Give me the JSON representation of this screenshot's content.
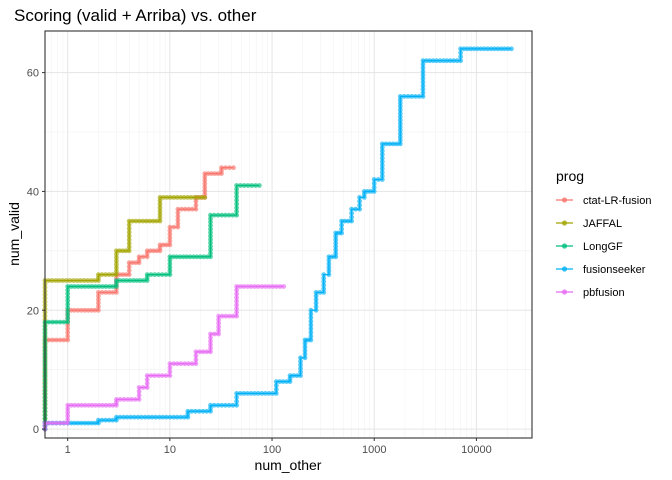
{
  "chart_data": {
    "type": "line",
    "title": "Scoring (valid + Arriba) vs. other",
    "xlabel": "num_other",
    "ylabel": "num_valid",
    "x_scale": "log10",
    "xlim": [
      0.6,
      35000
    ],
    "ylim": [
      -1.5,
      67
    ],
    "x_ticks": [
      1,
      10,
      100,
      1000,
      10000
    ],
    "x_tick_labels": [
      "1",
      "10",
      "100",
      "1000",
      "10000"
    ],
    "y_ticks": [
      0,
      20,
      40,
      60
    ],
    "y_tick_labels": [
      "0",
      "20",
      "40",
      "60"
    ],
    "grid": true,
    "legend": {
      "title": "prog",
      "position": "right"
    },
    "series": [
      {
        "name": "ctat-LR-fusion",
        "color": "#F8766D",
        "step_points": [
          [
            0.6,
            0
          ],
          [
            0.6,
            15
          ],
          [
            1,
            15
          ],
          [
            1,
            20
          ],
          [
            2,
            20
          ],
          [
            2,
            23
          ],
          [
            3,
            23
          ],
          [
            3,
            26
          ],
          [
            4,
            26
          ],
          [
            4,
            28
          ],
          [
            5,
            28
          ],
          [
            5,
            29
          ],
          [
            6,
            29
          ],
          [
            6,
            30
          ],
          [
            8,
            30
          ],
          [
            8,
            31
          ],
          [
            10,
            31
          ],
          [
            10,
            34
          ],
          [
            12,
            34
          ],
          [
            12,
            37
          ],
          [
            18,
            37
          ],
          [
            18,
            39
          ],
          [
            22,
            39
          ],
          [
            22,
            43
          ],
          [
            32,
            43
          ],
          [
            32,
            44
          ],
          [
            42,
            44
          ]
        ]
      },
      {
        "name": "JAFFAL",
        "color": "#A3A500",
        "step_points": [
          [
            0.6,
            0
          ],
          [
            0.6,
            25
          ],
          [
            2,
            25
          ],
          [
            2,
            26
          ],
          [
            3,
            26
          ],
          [
            3,
            30
          ],
          [
            4,
            30
          ],
          [
            4,
            35
          ],
          [
            8,
            35
          ],
          [
            8,
            39
          ],
          [
            22,
            39
          ]
        ]
      },
      {
        "name": "LongGF",
        "color": "#00BF7D",
        "step_points": [
          [
            0.6,
            0
          ],
          [
            0.6,
            18
          ],
          [
            1,
            18
          ],
          [
            1,
            24
          ],
          [
            3,
            24
          ],
          [
            3,
            25
          ],
          [
            6,
            25
          ],
          [
            6,
            26
          ],
          [
            10,
            26
          ],
          [
            10,
            29
          ],
          [
            25,
            29
          ],
          [
            25,
            36
          ],
          [
            45,
            36
          ],
          [
            45,
            41
          ],
          [
            75,
            41
          ]
        ]
      },
      {
        "name": "fusionseeker",
        "color": "#00B0F6",
        "step_points": [
          [
            0.6,
            0
          ],
          [
            0.6,
            1
          ],
          [
            1,
            1
          ],
          [
            2,
            1
          ],
          [
            2,
            1.5
          ],
          [
            3,
            1.5
          ],
          [
            3,
            2
          ],
          [
            15,
            2
          ],
          [
            15,
            3
          ],
          [
            25,
            3
          ],
          [
            25,
            4
          ],
          [
            45,
            4
          ],
          [
            45,
            6
          ],
          [
            110,
            6
          ],
          [
            110,
            8
          ],
          [
            150,
            8
          ],
          [
            150,
            9
          ],
          [
            190,
            9
          ],
          [
            190,
            12
          ],
          [
            210,
            12
          ],
          [
            210,
            15
          ],
          [
            240,
            15
          ],
          [
            240,
            20
          ],
          [
            270,
            20
          ],
          [
            270,
            23
          ],
          [
            320,
            23
          ],
          [
            320,
            26
          ],
          [
            360,
            26
          ],
          [
            360,
            29
          ],
          [
            420,
            29
          ],
          [
            420,
            33
          ],
          [
            480,
            33
          ],
          [
            480,
            35
          ],
          [
            600,
            35
          ],
          [
            600,
            37
          ],
          [
            720,
            37
          ],
          [
            720,
            39
          ],
          [
            800,
            39
          ],
          [
            800,
            40
          ],
          [
            1000,
            40
          ],
          [
            1000,
            42
          ],
          [
            1200,
            42
          ],
          [
            1200,
            48
          ],
          [
            1800,
            48
          ],
          [
            1800,
            56
          ],
          [
            3000,
            56
          ],
          [
            3000,
            62
          ],
          [
            7000,
            62
          ],
          [
            7000,
            64
          ],
          [
            22000,
            64
          ]
        ]
      },
      {
        "name": "pbfusion",
        "color": "#E76BF3",
        "step_points": [
          [
            0.6,
            0
          ],
          [
            0.6,
            1
          ],
          [
            1,
            1
          ],
          [
            1,
            4
          ],
          [
            3,
            4
          ],
          [
            3,
            5
          ],
          [
            5,
            5
          ],
          [
            5,
            7
          ],
          [
            6,
            7
          ],
          [
            6,
            9
          ],
          [
            10,
            9
          ],
          [
            10,
            11
          ],
          [
            18,
            11
          ],
          [
            18,
            13
          ],
          [
            25,
            13
          ],
          [
            25,
            16
          ],
          [
            30,
            16
          ],
          [
            30,
            19
          ],
          [
            45,
            19
          ],
          [
            45,
            24
          ],
          [
            130,
            24
          ]
        ]
      }
    ]
  }
}
